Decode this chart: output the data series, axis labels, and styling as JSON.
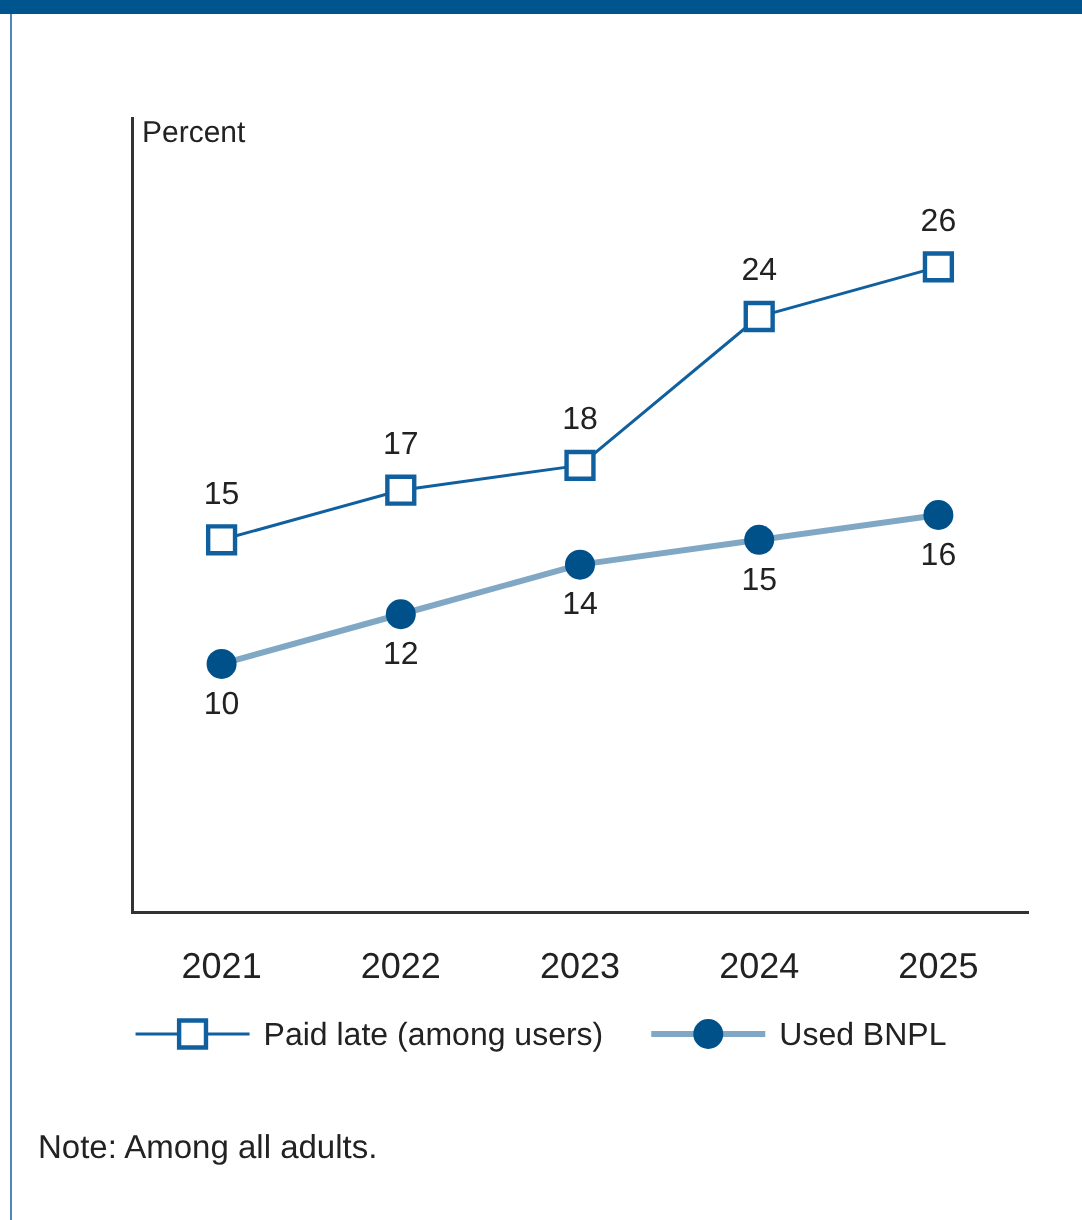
{
  "chart_data": {
    "type": "line",
    "ylabel": "Percent",
    "categories": [
      "2021",
      "2022",
      "2023",
      "2024",
      "2025"
    ],
    "series": [
      {
        "name": "Paid late (among users)",
        "color": "#10609f",
        "marker": "square",
        "values": [
          15,
          17,
          18,
          24,
          26
        ]
      },
      {
        "name": "Used BNPL",
        "color": "#00508a",
        "marker": "circle",
        "values": [
          10,
          12,
          14,
          15,
          16
        ]
      }
    ],
    "ylim": [
      0,
      32
    ],
    "tick_labels": "x",
    "data_labels": true,
    "legend": "bottom",
    "annotations": [
      "Note: Among all adults."
    ]
  }
}
